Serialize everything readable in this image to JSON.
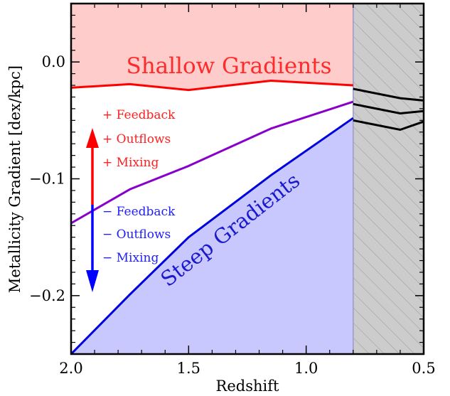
{
  "chart_data": {
    "type": "line",
    "xlabel": "Redshift",
    "ylabel": "Metallicity Gradient [dex/kpc]",
    "xlim": [
      2.0,
      0.5
    ],
    "ylim": [
      -0.25,
      0.05
    ],
    "x_ticks": [
      2.0,
      1.5,
      1.0,
      0.5
    ],
    "x_tick_labels": [
      "2.0",
      "1.5",
      "1.0",
      "0.5"
    ],
    "y_ticks": [
      0.0,
      -0.1,
      -0.2
    ],
    "y_tick_labels": [
      "0.0",
      "−0.1",
      "−0.2"
    ],
    "grid": false,
    "series": [
      {
        "color": "#ff0000",
        "x": [
          2.0,
          1.75,
          1.5,
          1.15,
          0.8
        ],
        "y": [
          -0.022,
          -0.019,
          -0.024,
          -0.016,
          -0.02
        ]
      },
      {
        "color": "#8800cc",
        "x": [
          2.0,
          1.75,
          1.5,
          1.15,
          0.8
        ],
        "y": [
          -0.138,
          -0.109,
          -0.089,
          -0.057,
          -0.034
        ]
      },
      {
        "color": "#0000dd",
        "x": [
          2.0,
          1.75,
          1.5,
          1.15,
          0.8
        ],
        "y": [
          -0.25,
          -0.199,
          -0.15,
          -0.097,
          -0.048
        ]
      }
    ],
    "hatched_lines": [
      {
        "color": "#000000",
        "x": [
          0.8,
          0.6,
          0.5
        ],
        "y": [
          -0.023,
          -0.031,
          -0.033
        ]
      },
      {
        "color": "#000000",
        "x": [
          0.8,
          0.6,
          0.5
        ],
        "y": [
          -0.036,
          -0.044,
          -0.042
        ]
      },
      {
        "color": "#000000",
        "x": [
          0.8,
          0.6,
          0.5
        ],
        "y": [
          -0.05,
          -0.058,
          -0.051
        ]
      }
    ],
    "shaded_regions": {
      "shallow": {
        "color": "#ffcccc",
        "label": "Shallow Gradients",
        "label_color": "#ff2a2a"
      },
      "steep": {
        "color": "#c8c8ff",
        "label": "Steep Gradients",
        "label_color": "#1a1acc"
      },
      "excluded": {
        "x_range": [
          0.8,
          0.5
        ],
        "fill": "#cccccc",
        "hatch": "#999999"
      }
    },
    "annotations": {
      "plus_labels": [
        "+ Feedback",
        "+ Outflows",
        "+ Mixing"
      ],
      "plus_color": "#ff2020",
      "minus_labels": [
        "− Feedback",
        "− Outflows",
        "− Mixing"
      ],
      "minus_color": "#2020ff"
    }
  }
}
